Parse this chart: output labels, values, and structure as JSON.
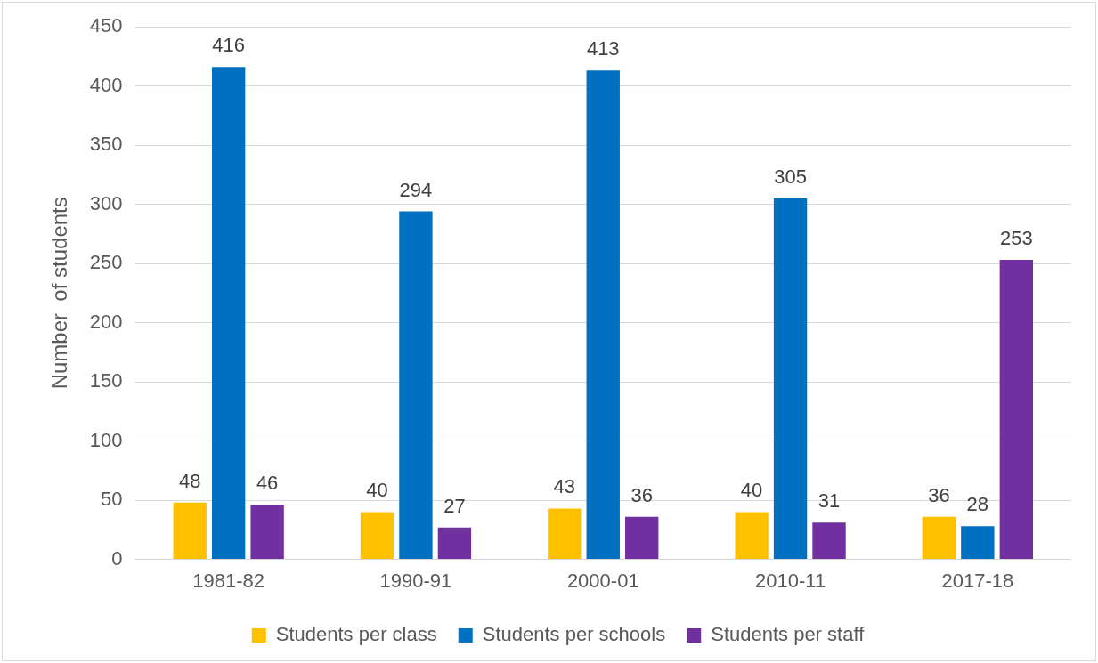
{
  "chart_data": {
    "type": "bar",
    "ylabel": "Number  of students",
    "categories": [
      "1981-82",
      "1990-91",
      "2000-01",
      "2010-11",
      "2017-18"
    ],
    "series": [
      {
        "name": "Students per class",
        "color": "#ffc000",
        "values": [
          48,
          40,
          43,
          40,
          36
        ]
      },
      {
        "name": "Students per schools",
        "color": "#0070c0",
        "values": [
          416,
          294,
          413,
          305,
          28
        ]
      },
      {
        "name": "Students per staff",
        "color": "#7030a0",
        "values": [
          46,
          27,
          36,
          31,
          253
        ]
      }
    ],
    "ylim": [
      0,
      450
    ],
    "yticks": [
      0,
      50,
      100,
      150,
      200,
      250,
      300,
      350,
      400,
      450
    ],
    "grid": "y",
    "legend": "bottom",
    "data_labels": true
  }
}
